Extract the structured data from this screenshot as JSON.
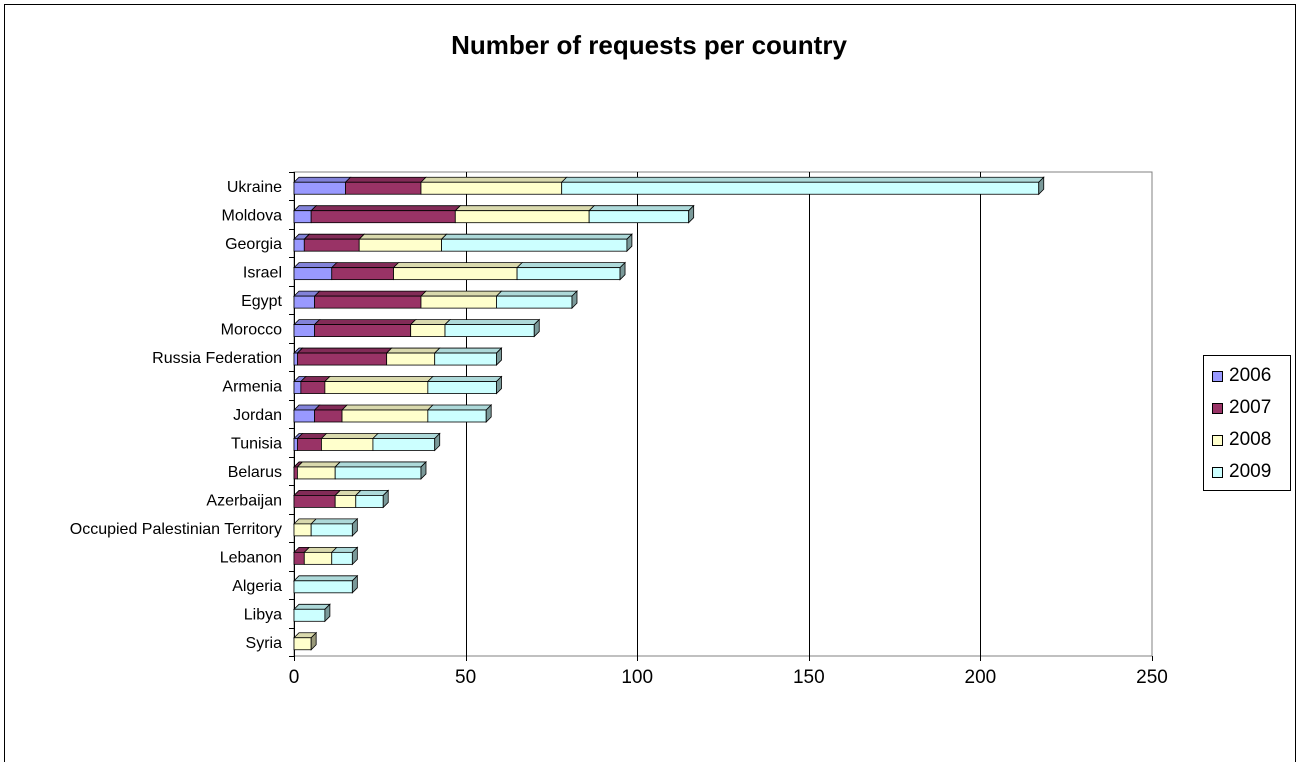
{
  "chart_data": {
    "type": "bar",
    "orientation": "horizontal",
    "stacked": true,
    "title": "Number of requests per country",
    "xlabel": "",
    "ylabel": "",
    "xlim": [
      0,
      250
    ],
    "xticks": [
      0,
      50,
      100,
      150,
      200,
      250
    ],
    "grid": true,
    "legend_position": "right",
    "categories": [
      "Ukraine",
      "Moldova",
      "Georgia",
      "Israel",
      "Egypt",
      "Morocco",
      "Russia Federation",
      "Armenia",
      "Jordan",
      "Tunisia",
      "Belarus",
      "Azerbaijan",
      "Occupied Palestinian Territory",
      "Lebanon",
      "Algeria",
      "Libya",
      "Syria"
    ],
    "series": [
      {
        "name": "2006",
        "color": "#9999ff",
        "values": [
          15,
          5,
          3,
          11,
          6,
          6,
          1,
          2,
          6,
          1,
          0,
          0,
          0,
          0,
          0,
          0,
          0
        ]
      },
      {
        "name": "2007",
        "color": "#993366",
        "values": [
          22,
          42,
          16,
          18,
          31,
          28,
          26,
          7,
          8,
          7,
          1,
          12,
          0,
          3,
          0,
          0,
          0
        ]
      },
      {
        "name": "2008",
        "color": "#ffffcc",
        "values": [
          41,
          39,
          24,
          36,
          22,
          10,
          14,
          30,
          25,
          15,
          11,
          6,
          5,
          8,
          0,
          0,
          5
        ]
      },
      {
        "name": "2009",
        "color": "#ccffff",
        "values": [
          139,
          29,
          54,
          30,
          22,
          26,
          18,
          20,
          17,
          18,
          25,
          8,
          12,
          6,
          17,
          9,
          0
        ]
      }
    ]
  }
}
